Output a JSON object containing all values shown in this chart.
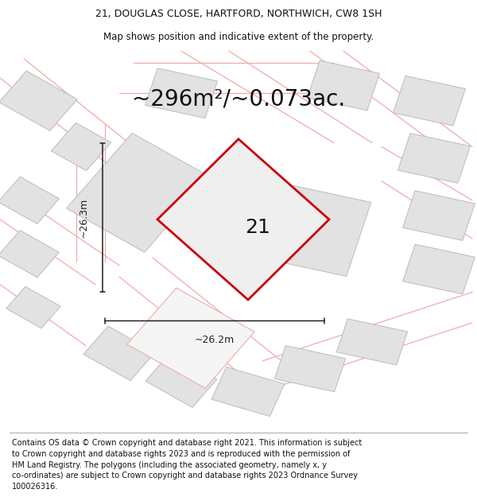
{
  "title_line1": "21, DOUGLAS CLOSE, HARTFORD, NORTHWICH, CW8 1SH",
  "title_line2": "Map shows position and indicative extent of the property.",
  "area_text": "~296m²/~0.073ac.",
  "label_number": "21",
  "dim_horizontal": "~26.2m",
  "dim_vertical": "~26.3m",
  "footer_wrapped": "Contains OS data © Crown copyright and database right 2021. This information is subject\nto Crown copyright and database rights 2023 and is reproduced with the permission of\nHM Land Registry. The polygons (including the associated geometry, namely x, y\nco-ordinates) are subject to Crown copyright and database rights 2023 Ordnance Survey\n100026316.",
  "map_bg": "#ffffff",
  "plot_fill": "#efefef",
  "plot_edge": "#cc0000",
  "neighbor_fill": "#e2e2e2",
  "neighbor_edge": "#bbbbbb",
  "road_color": "#f0aaaa",
  "dim_color": "#222222",
  "title_fontsize": 9.0,
  "subtitle_fontsize": 8.5,
  "area_fontsize": 20,
  "label_fontsize": 18,
  "dim_fontsize": 9,
  "footer_fontsize": 7.0
}
